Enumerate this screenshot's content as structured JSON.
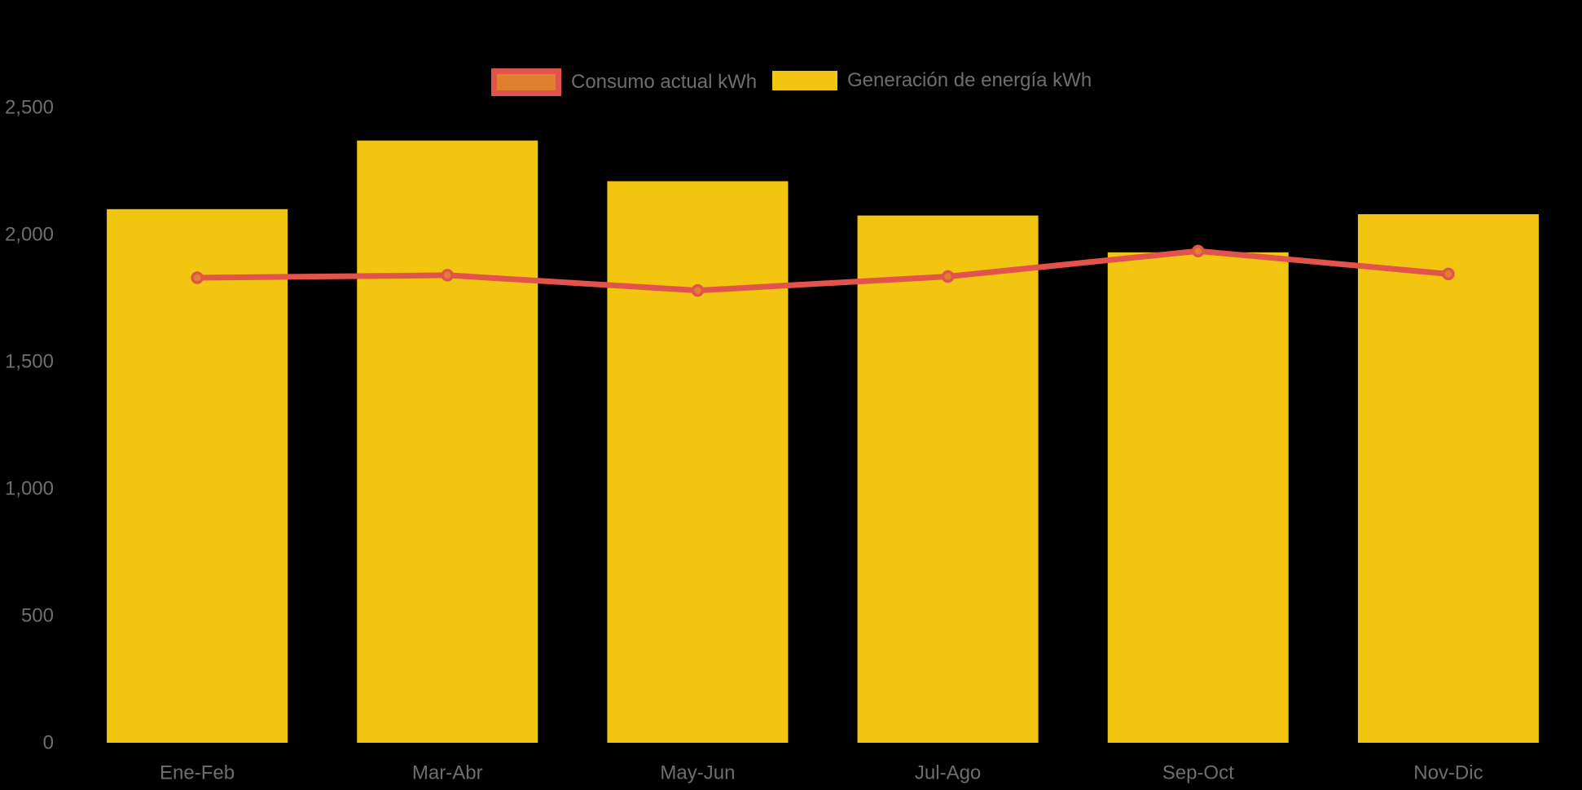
{
  "chart_data": {
    "type": "combo",
    "categories": [
      "Ene-Feb",
      "Mar-Abr",
      "May-Jun",
      "Jul-Ago",
      "Sep-Oct",
      "Nov-Dic"
    ],
    "series": [
      {
        "name": "Consumo actual kWh",
        "type": "line",
        "values": [
          1830,
          1840,
          1780,
          1835,
          1935,
          1845
        ],
        "line_color": "#E2544B",
        "marker_fill": "#DF7F2F"
      },
      {
        "name": "Generación de energía kWh",
        "type": "bar",
        "values": [
          2100,
          2370,
          2210,
          2075,
          1930,
          2080
        ],
        "color": "#F2C511"
      }
    ],
    "title": "",
    "xlabel": "",
    "ylabel": "",
    "ylim": [
      0,
      2500
    ],
    "y_ticks": [
      0,
      500,
      1000,
      1500,
      2000,
      2500
    ],
    "y_tick_labels": [
      "0",
      "500",
      "1,000",
      "1,500",
      "2,000",
      "2,500"
    ],
    "grid": false,
    "legend_position": "top-center",
    "background": "#000000",
    "text_color": "#6E6E6E"
  }
}
